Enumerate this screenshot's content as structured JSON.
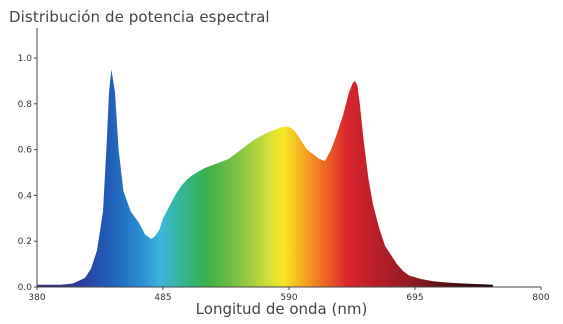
{
  "chart_data": {
    "type": "area",
    "title": "Distribución de potencia espectral",
    "xlabel": "Longitud de onda (nm)",
    "ylabel": "",
    "xlim": [
      380,
      800
    ],
    "ylim": [
      0,
      1.0
    ],
    "x_ticks": [
      380,
      485,
      590,
      695,
      800
    ],
    "x_tick_labels": [
      "380",
      "485",
      "590",
      "695",
      "800"
    ],
    "y_ticks": [
      0.0,
      0.2,
      0.4,
      0.6,
      0.8,
      1.0
    ],
    "y_tick_labels": [
      "0.0",
      "0.2",
      "0.4",
      "0.6",
      "0.8",
      "1.0"
    ],
    "grid": false,
    "fill": "spectral rainbow gradient (violet-blue to deep red)",
    "series": [
      {
        "x": [
          380,
          400,
          410,
          420,
          425,
          430,
          435,
          438,
          440,
          442,
          445,
          448,
          452,
          458,
          465,
          470,
          475,
          478,
          482,
          485,
          490,
          495,
          500,
          505,
          510,
          520,
          530,
          540,
          550,
          560,
          570,
          580,
          585,
          590,
          595,
          600,
          605,
          610,
          615,
          620,
          625,
          630,
          635,
          640,
          643,
          645,
          647,
          649,
          652,
          656,
          660,
          665,
          670,
          675,
          680,
          685,
          690,
          700,
          710,
          720,
          735,
          750,
          760
        ],
        "y": [
          0.01,
          0.01,
          0.015,
          0.04,
          0.08,
          0.16,
          0.33,
          0.62,
          0.85,
          0.95,
          0.85,
          0.6,
          0.42,
          0.33,
          0.28,
          0.23,
          0.21,
          0.22,
          0.25,
          0.3,
          0.35,
          0.4,
          0.44,
          0.47,
          0.49,
          0.52,
          0.54,
          0.56,
          0.6,
          0.64,
          0.67,
          0.69,
          0.7,
          0.7,
          0.68,
          0.64,
          0.6,
          0.58,
          0.56,
          0.55,
          0.6,
          0.67,
          0.75,
          0.85,
          0.89,
          0.9,
          0.88,
          0.8,
          0.65,
          0.48,
          0.36,
          0.26,
          0.18,
          0.14,
          0.1,
          0.07,
          0.05,
          0.035,
          0.025,
          0.02,
          0.015,
          0.012,
          0.01
        ]
      }
    ]
  }
}
